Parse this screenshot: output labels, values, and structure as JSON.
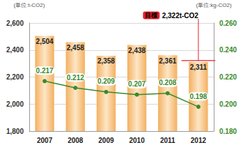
{
  "chart_data": {
    "type": "bar",
    "categories": [
      "2007",
      "2008",
      "2009",
      "2010",
      "2011",
      "2012"
    ],
    "series": [
      {
        "type": "bar",
        "color": "#f4b061",
        "values": [
          2504,
          2458,
          2358,
          2438,
          2361,
          2311
        ],
        "value_labels": [
          "2,504",
          "2,458",
          "2,358",
          "2,438",
          "2,361",
          "2,311"
        ],
        "data_labels": true
      },
      {
        "type": "line",
        "axis": "y2",
        "color": "#3a8a2c",
        "marker": "circle",
        "line_style": "solid",
        "values": [
          0.217,
          0.212,
          0.209,
          0.207,
          0.208,
          0.198
        ],
        "data_labels": true
      }
    ],
    "ylabel": "(単位:t-CO2)",
    "y2label": "(単位:kg-CO2)",
    "ylim": [
      1800,
      2600
    ],
    "yticks": [
      {
        "value": 1800,
        "label": "1,800"
      },
      {
        "value": 2000,
        "label": "2,000"
      },
      {
        "value": 2200,
        "label": "2,200"
      },
      {
        "value": 2400,
        "label": "2,400"
      },
      {
        "value": 2600,
        "label": "2,600"
      }
    ],
    "y2lim": [
      0.18,
      0.26
    ],
    "y2ticks": [
      {
        "value": 0.18,
        "label": "0.180"
      },
      {
        "value": 0.2,
        "label": "0.200"
      },
      {
        "value": 0.22,
        "label": "0.220"
      },
      {
        "value": 0.24,
        "label": "0.240"
      },
      {
        "value": 0.26,
        "label": "0.260"
      }
    ],
    "grid": true,
    "annotations": [
      {
        "label": "目標",
        "text": "2,322t-CO2",
        "value": 2322
      }
    ]
  }
}
